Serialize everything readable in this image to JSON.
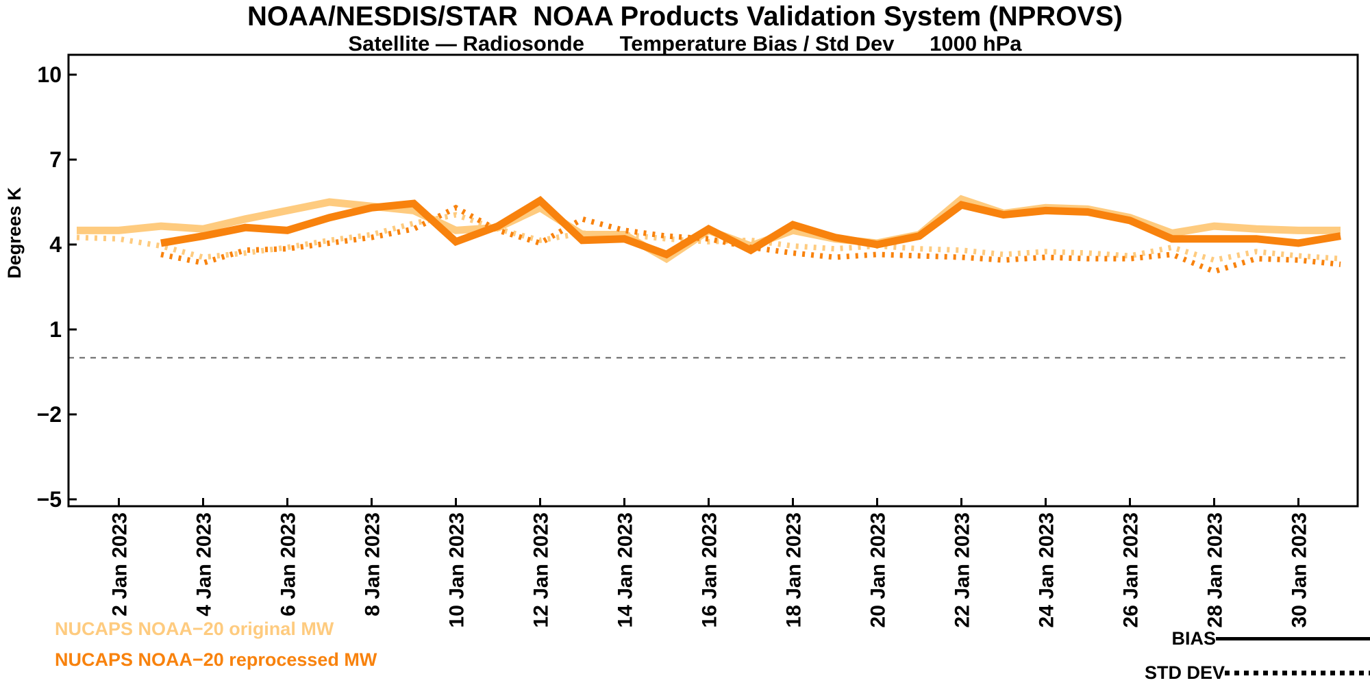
{
  "header": {
    "title": "NOAA/NESDIS/STAR  NOAA Products Validation System (NPROVS)",
    "subtitle": "Satellite — Radiosonde      Temperature Bias / Std Dev      1000 hPa"
  },
  "legend": {
    "series1_label": "NUCAPS NOAA−20 original MW",
    "series2_label": "NUCAPS NOAA−20 reprocessed MW",
    "bias_label": "BIAS",
    "stddev_label": "STD DEV",
    "series1_color": "#FECB7F",
    "series2_color": "#F8820D"
  },
  "chart_data": {
    "type": "line",
    "title": "NOAA/NESDIS/STAR  NOAA Products Validation System (NPROVS)",
    "subtitle": "Satellite — Radiosonde   Temperature Bias / Std Dev   1000 hPa",
    "ylabel": "Degrees K",
    "ylim": [
      -5,
      10
    ],
    "y_ticks": [
      10,
      7,
      4,
      1,
      -2,
      -5
    ],
    "zero_reference_line": 0,
    "x_days": [
      1,
      2,
      3,
      4,
      5,
      6,
      7,
      8,
      9,
      10,
      11,
      12,
      13,
      14,
      15,
      16,
      17,
      18,
      19,
      20,
      21,
      22,
      23,
      24,
      25,
      26,
      27,
      28,
      29,
      30,
      31
    ],
    "x_tick_days": [
      2,
      4,
      6,
      8,
      10,
      12,
      14,
      16,
      18,
      20,
      22,
      24,
      26,
      28,
      30
    ],
    "x_tick_labels": [
      "2 Jan 2023",
      "4 Jan 2023",
      "6 Jan 2023",
      "8 Jan 2023",
      "10 Jan 2023",
      "12 Jan 2023",
      "14 Jan 2023",
      "16 Jan 2023",
      "18 Jan 2023",
      "20 Jan 2023",
      "22 Jan 2023",
      "24 Jan 2023",
      "26 Jan 2023",
      "28 Jan 2023",
      "30 Jan 2023"
    ],
    "series": [
      {
        "name": "NUCAPS NOAA-20 original MW",
        "stat": "BIAS",
        "style": "solid",
        "color": "#FECB7F",
        "values": [
          4.5,
          4.5,
          4.65,
          4.55,
          4.9,
          5.2,
          5.5,
          5.35,
          5.2,
          4.5,
          4.6,
          5.3,
          4.35,
          4.35,
          3.5,
          4.5,
          3.95,
          4.5,
          4.2,
          4.05,
          4.35,
          5.6,
          5.1,
          5.3,
          5.25,
          4.95,
          4.4,
          4.65,
          4.55,
          4.5,
          4.5
        ]
      },
      {
        "name": "NUCAPS NOAA-20 original MW",
        "stat": "STD DEV",
        "style": "dotted",
        "color": "#FECB7F",
        "values": [
          4.25,
          4.2,
          3.95,
          3.55,
          3.7,
          3.9,
          4.15,
          4.35,
          4.75,
          5.05,
          4.55,
          4.15,
          4.4,
          4.35,
          4.2,
          4.1,
          4.15,
          3.95,
          3.85,
          3.95,
          3.85,
          3.8,
          3.65,
          3.75,
          3.7,
          3.6,
          3.9,
          3.45,
          3.75,
          3.6,
          3.5
        ]
      },
      {
        "name": "NUCAPS NOAA-20 reprocessed MW",
        "stat": "BIAS",
        "style": "solid",
        "color": "#F8820D",
        "values": [
          null,
          null,
          4.05,
          4.3,
          4.6,
          4.5,
          4.95,
          5.3,
          5.45,
          4.1,
          4.65,
          5.55,
          4.15,
          4.2,
          3.65,
          4.55,
          3.8,
          4.7,
          4.25,
          4.0,
          4.3,
          5.4,
          5.05,
          5.2,
          5.15,
          4.85,
          4.2,
          4.2,
          4.2,
          4.05,
          4.3
        ]
      },
      {
        "name": "NUCAPS NOAA-20 reprocessed MW",
        "stat": "STD DEV",
        "style": "dotted",
        "color": "#F8820D",
        "values": [
          null,
          null,
          3.65,
          3.35,
          3.8,
          3.85,
          4.05,
          4.25,
          4.55,
          5.3,
          4.5,
          4.05,
          4.9,
          4.5,
          4.3,
          4.2,
          3.9,
          3.7,
          3.55,
          3.65,
          3.6,
          3.55,
          3.45,
          3.55,
          3.5,
          3.5,
          3.65,
          3.05,
          3.5,
          3.45,
          3.3
        ]
      }
    ]
  }
}
